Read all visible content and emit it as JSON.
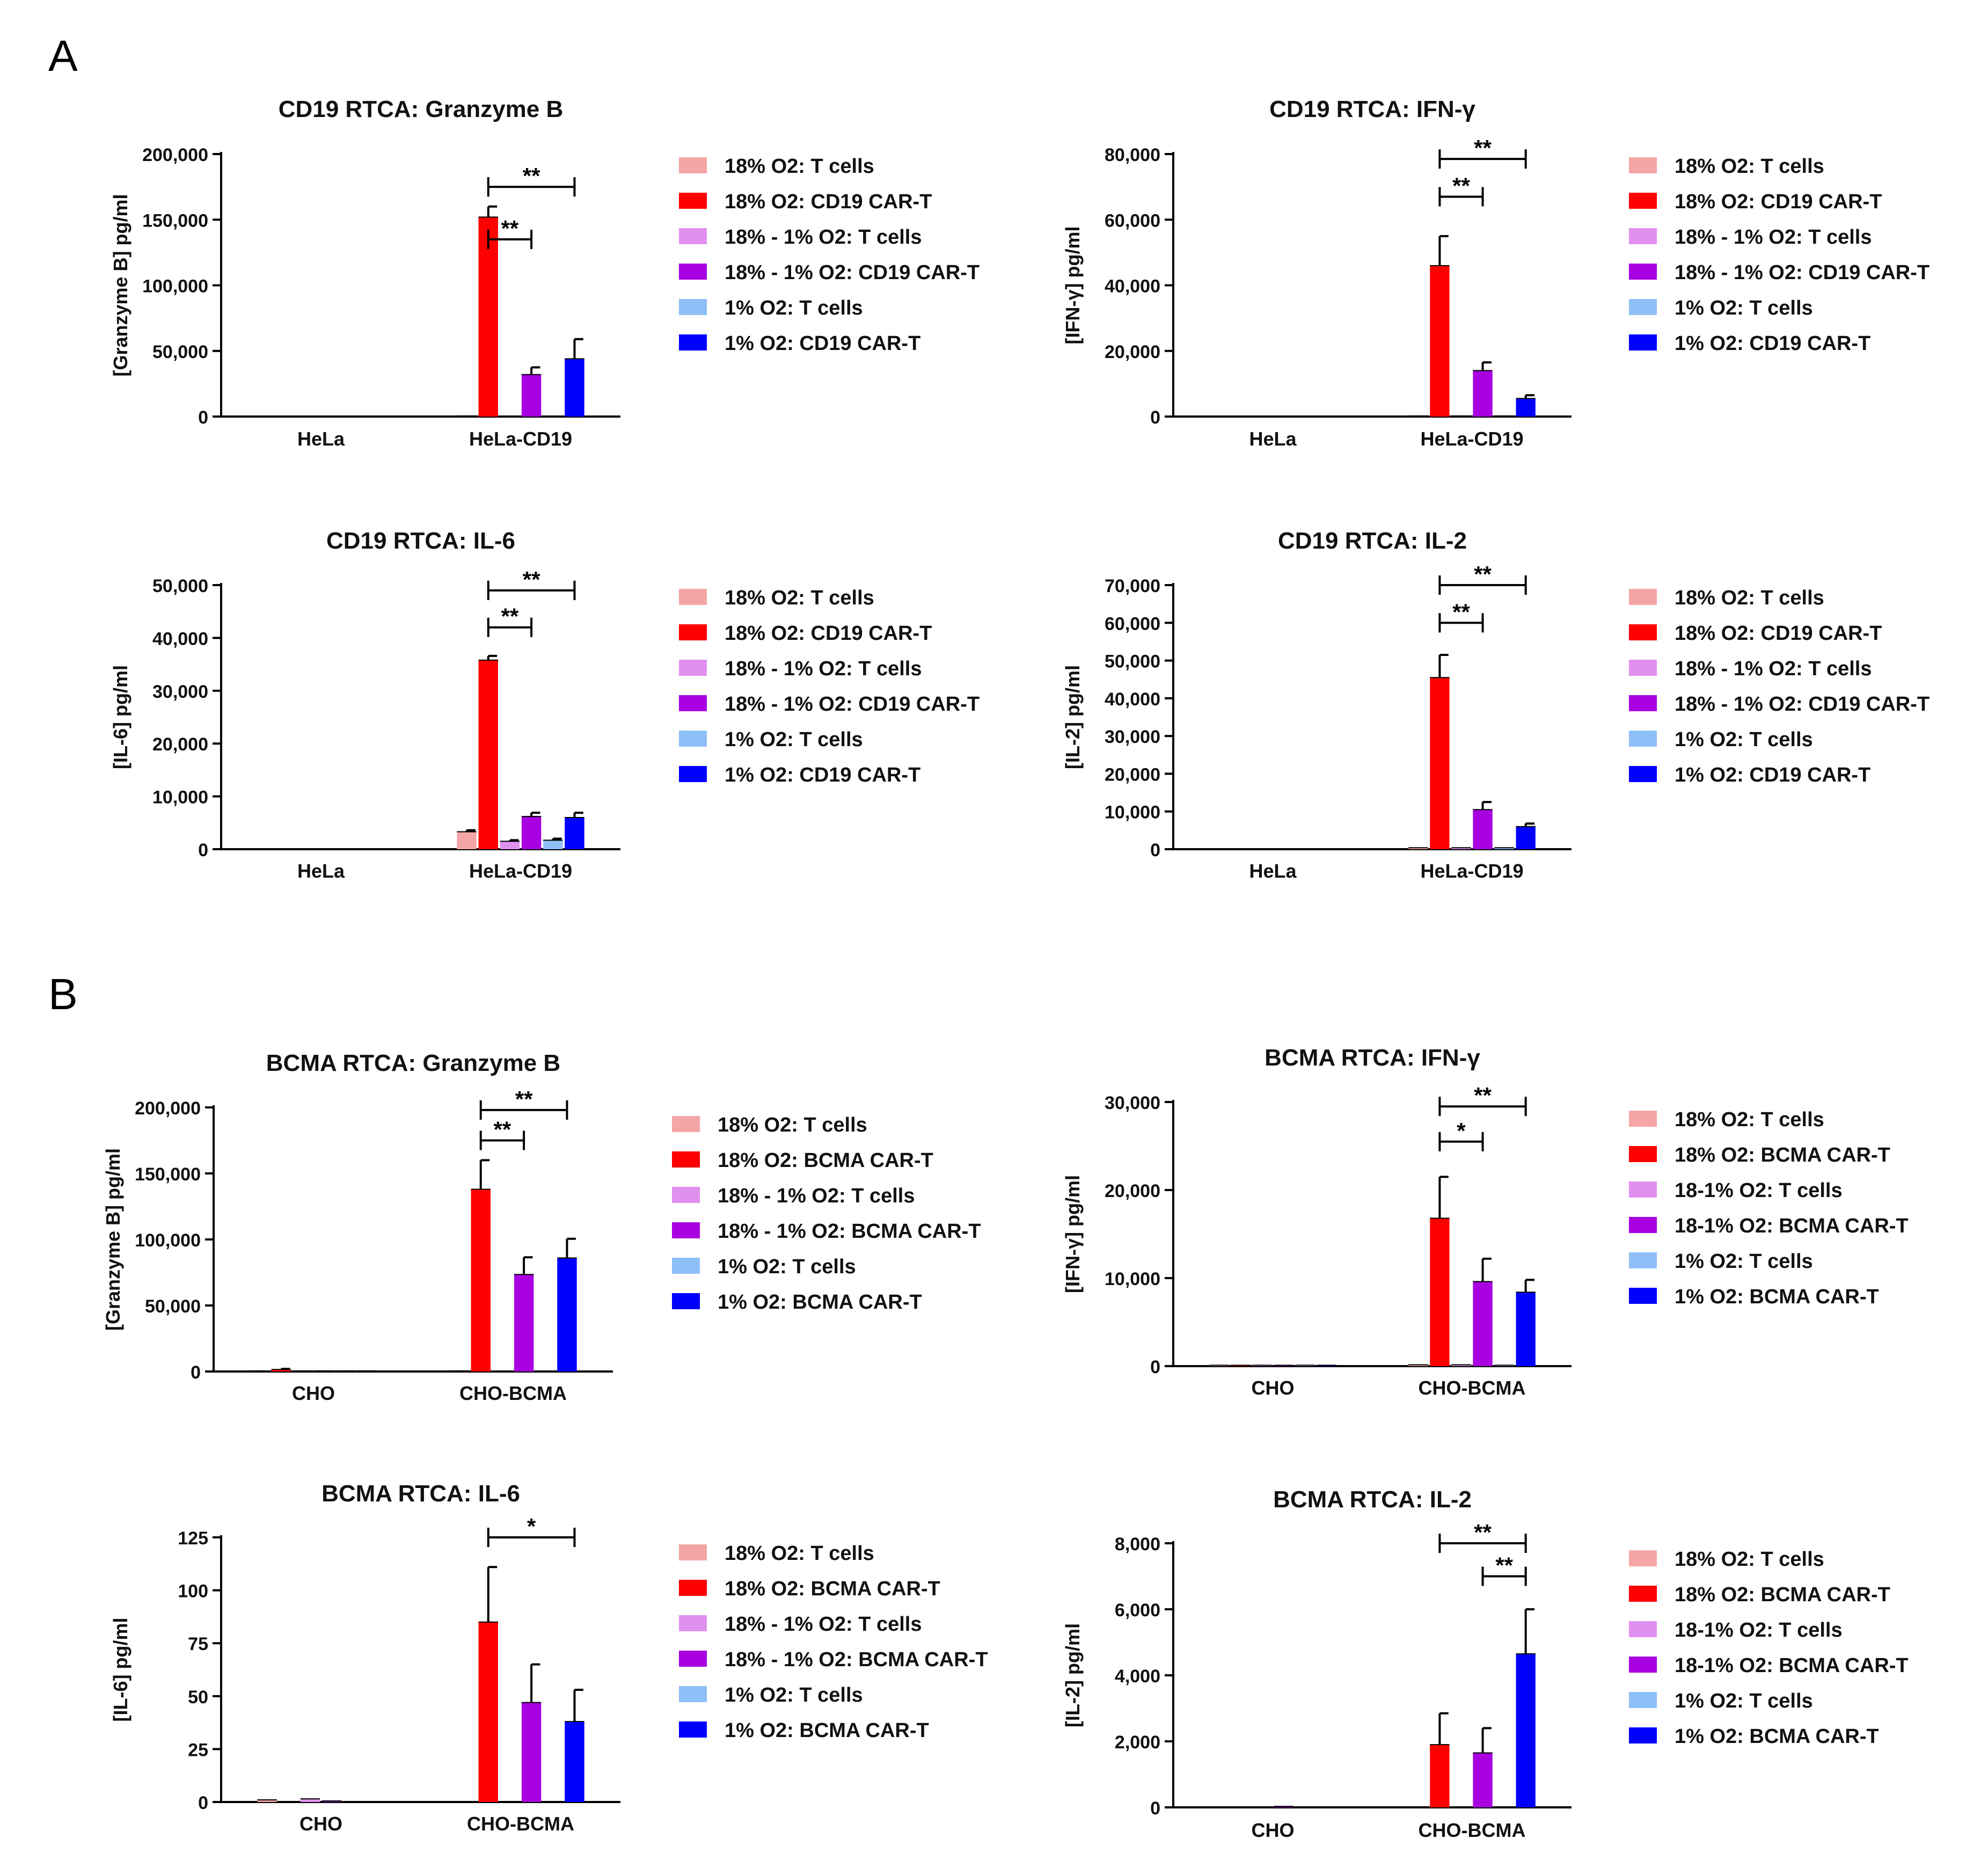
{
  "panels": [
    {
      "letter": "A"
    },
    {
      "letter": "B"
    }
  ],
  "chart_data": [
    {
      "type": "bar",
      "title": "CD19 RTCA: Granzyme B",
      "ylabel": "[Granzyme B] pg/ml",
      "ylim": [
        0,
        200000
      ],
      "yticks": [
        0,
        50000,
        100000,
        150000,
        200000
      ],
      "ytick_labels": [
        "0",
        "50,000",
        "100,000",
        "150,000",
        "200,000"
      ],
      "categories": [
        "HeLa",
        "HeLa-CD19"
      ],
      "series": [
        {
          "name": "18% O2: T cells",
          "color": "#f4a6a6",
          "values": [
            0,
            500
          ],
          "errors": [
            0,
            0
          ]
        },
        {
          "name": "18% O2: CD19 CAR-T",
          "color": "#ff0000",
          "values": [
            0,
            152000
          ],
          "errors": [
            0,
            8000
          ]
        },
        {
          "name": "18% - 1% O2: T cells",
          "color": "#e091f0",
          "values": [
            0,
            300
          ],
          "errors": [
            0,
            0
          ]
        },
        {
          "name": "18% - 1% O2: CD19 CAR-T",
          "color": "#a800e0",
          "values": [
            0,
            32000
          ],
          "errors": [
            0,
            5500
          ]
        },
        {
          "name": "1% O2: T cells",
          "color": "#8fbff7",
          "values": [
            0,
            300
          ],
          "errors": [
            0,
            0
          ]
        },
        {
          "name": "1% O2: CD19 CAR-T",
          "color": "#0000ff",
          "values": [
            0,
            44000
          ],
          "errors": [
            0,
            15000
          ]
        }
      ],
      "significance": [
        {
          "group": 1,
          "from": 1,
          "to": 3,
          "label": "**",
          "y": 135000
        },
        {
          "group": 1,
          "from": 1,
          "to": 5,
          "label": "**",
          "y": 175000
        }
      ]
    },
    {
      "type": "bar",
      "title": "CD19 RTCA: IFN-γ",
      "ylabel": "[IFN-γ] pg/ml",
      "ylim": [
        0,
        80000
      ],
      "yticks": [
        0,
        20000,
        40000,
        60000,
        80000
      ],
      "ytick_labels": [
        "0",
        "20,000",
        "40,000",
        "60,000",
        "80,000"
      ],
      "categories": [
        "HeLa",
        "HeLa-CD19"
      ],
      "series": [
        {
          "name": "18% O2: T cells",
          "color": "#f4a6a6",
          "values": [
            0,
            200
          ],
          "errors": [
            0,
            0
          ]
        },
        {
          "name": "18% O2: CD19 CAR-T",
          "color": "#ff0000",
          "values": [
            0,
            46000
          ],
          "errors": [
            0,
            9000
          ]
        },
        {
          "name": "18% - 1% O2: T cells",
          "color": "#e091f0",
          "values": [
            0,
            200
          ],
          "errors": [
            0,
            0
          ]
        },
        {
          "name": "18% - 1% O2: CD19 CAR-T",
          "color": "#a800e0",
          "values": [
            0,
            14000
          ],
          "errors": [
            0,
            2500
          ]
        },
        {
          "name": "1% O2: T cells",
          "color": "#8fbff7",
          "values": [
            0,
            200
          ],
          "errors": [
            0,
            0
          ]
        },
        {
          "name": "1% O2: CD19 CAR-T",
          "color": "#0000ff",
          "values": [
            0,
            5500
          ],
          "errors": [
            0,
            1000
          ]
        }
      ],
      "significance": [
        {
          "group": 1,
          "from": 1,
          "to": 3,
          "label": "**",
          "y": 67000
        },
        {
          "group": 1,
          "from": 1,
          "to": 5,
          "label": "**",
          "y": 78500
        }
      ]
    },
    {
      "type": "bar",
      "title": "CD19 RTCA: IL-6",
      "ylabel": "[IL-6] pg/ml",
      "ylim": [
        0,
        50000
      ],
      "yticks": [
        0,
        10000,
        20000,
        30000,
        40000,
        50000
      ],
      "ytick_labels": [
        "0",
        "10,000",
        "20,000",
        "30,000",
        "40,000",
        "50,000"
      ],
      "categories": [
        "HeLa",
        "HeLa-CD19"
      ],
      "series": [
        {
          "name": "18% O2: T cells",
          "color": "#f4a6a6",
          "values": [
            0,
            3300
          ],
          "errors": [
            0,
            300
          ]
        },
        {
          "name": "18% O2: CD19 CAR-T",
          "color": "#ff0000",
          "values": [
            0,
            35800
          ],
          "errors": [
            0,
            800
          ]
        },
        {
          "name": "18% - 1% O2: T cells",
          "color": "#e091f0",
          "values": [
            0,
            1500
          ],
          "errors": [
            0,
            200
          ]
        },
        {
          "name": "18% - 1% O2: CD19 CAR-T",
          "color": "#a800e0",
          "values": [
            0,
            6200
          ],
          "errors": [
            0,
            700
          ]
        },
        {
          "name": "1% O2: T cells",
          "color": "#8fbff7",
          "values": [
            0,
            1700
          ],
          "errors": [
            0,
            300
          ]
        },
        {
          "name": "1% O2: CD19 CAR-T",
          "color": "#0000ff",
          "values": [
            0,
            6000
          ],
          "errors": [
            0,
            900
          ]
        }
      ],
      "significance": [
        {
          "group": 1,
          "from": 1,
          "to": 3,
          "label": "**",
          "y": 42000
        },
        {
          "group": 1,
          "from": 1,
          "to": 5,
          "label": "**",
          "y": 49000
        }
      ]
    },
    {
      "type": "bar",
      "title": "CD19 RTCA: IL-2",
      "ylabel": "[IL-2] pg/ml",
      "ylim": [
        0,
        70000
      ],
      "yticks": [
        0,
        10000,
        20000,
        30000,
        40000,
        50000,
        60000,
        70000
      ],
      "ytick_labels": [
        "0",
        "10,000",
        "20,000",
        "30,000",
        "40,000",
        "50,000",
        "60,000",
        "70,000"
      ],
      "categories": [
        "HeLa",
        "HeLa-CD19"
      ],
      "series": [
        {
          "name": "18% O2: T cells",
          "color": "#f4a6a6",
          "values": [
            0,
            400
          ],
          "errors": [
            0,
            0
          ]
        },
        {
          "name": "18% O2: CD19 CAR-T",
          "color": "#ff0000",
          "values": [
            0,
            45500
          ],
          "errors": [
            0,
            6000
          ]
        },
        {
          "name": "18% - 1% O2: T cells",
          "color": "#e091f0",
          "values": [
            0,
            400
          ],
          "errors": [
            0,
            0
          ]
        },
        {
          "name": "18% - 1% O2: CD19 CAR-T",
          "color": "#a800e0",
          "values": [
            0,
            10500
          ],
          "errors": [
            0,
            2000
          ]
        },
        {
          "name": "1% O2: T cells",
          "color": "#8fbff7",
          "values": [
            0,
            400
          ],
          "errors": [
            0,
            0
          ]
        },
        {
          "name": "1% O2: CD19 CAR-T",
          "color": "#0000ff",
          "values": [
            0,
            6000
          ],
          "errors": [
            0,
            800
          ]
        }
      ],
      "significance": [
        {
          "group": 1,
          "from": 1,
          "to": 3,
          "label": "**",
          "y": 60000
        },
        {
          "group": 1,
          "from": 1,
          "to": 5,
          "label": "**",
          "y": 70000
        }
      ]
    },
    {
      "type": "bar",
      "title": "BCMA RTCA: Granzyme B",
      "ylabel": "[Granzyme B] pg/ml",
      "ylim": [
        0,
        200000
      ],
      "yticks": [
        0,
        50000,
        100000,
        150000,
        200000
      ],
      "ytick_labels": [
        "0",
        "50,000",
        "100,000",
        "150,000",
        "200,000"
      ],
      "categories": [
        "CHO",
        "CHO-BCMA"
      ],
      "series": [
        {
          "name": "18% O2: T cells",
          "color": "#f4a6a6",
          "values": [
            500,
            500
          ],
          "errors": [
            0,
            0
          ]
        },
        {
          "name": "18% O2: BCMA CAR-T",
          "color": "#ff0000",
          "values": [
            1500,
            138000
          ],
          "errors": [
            500,
            22000
          ]
        },
        {
          "name": "18% - 1% O2: T cells",
          "color": "#e091f0",
          "values": [
            500,
            300
          ],
          "errors": [
            0,
            0
          ]
        },
        {
          "name": "18% - 1% O2: BCMA CAR-T",
          "color": "#a800e0",
          "values": [
            500,
            73500
          ],
          "errors": [
            0,
            13000
          ]
        },
        {
          "name": "1% O2: T cells",
          "color": "#8fbff7",
          "values": [
            500,
            300
          ],
          "errors": [
            0,
            0
          ]
        },
        {
          "name": "1% O2: BCMA CAR-T",
          "color": "#0000ff",
          "values": [
            500,
            86000
          ],
          "errors": [
            0,
            14500
          ]
        }
      ],
      "significance": [
        {
          "group": 1,
          "from": 1,
          "to": 3,
          "label": "**",
          "y": 175000
        },
        {
          "group": 1,
          "from": 1,
          "to": 5,
          "label": "**",
          "y": 198000
        }
      ]
    },
    {
      "type": "bar",
      "title": "BCMA RTCA: IFN-γ",
      "ylabel": "[IFN-γ] pg/ml",
      "ylim": [
        0,
        30000
      ],
      "yticks": [
        0,
        10000,
        20000,
        30000
      ],
      "ytick_labels": [
        "0",
        "10,000",
        "20,000",
        "30,000"
      ],
      "categories": [
        "CHO",
        "CHO-BCMA"
      ],
      "series": [
        {
          "name": "18% O2: T cells",
          "color": "#f4a6a6",
          "values": [
            100,
            150
          ],
          "errors": [
            0,
            0
          ]
        },
        {
          "name": "18% O2: BCMA CAR-T",
          "color": "#ff0000",
          "values": [
            100,
            16800
          ],
          "errors": [
            0,
            4700
          ]
        },
        {
          "name": "18-1% O2: T cells",
          "color": "#e091f0",
          "values": [
            100,
            150
          ],
          "errors": [
            0,
            0
          ]
        },
        {
          "name": "18-1% O2: BCMA CAR-T",
          "color": "#a800e0",
          "values": [
            100,
            9600
          ],
          "errors": [
            0,
            2600
          ]
        },
        {
          "name": "1% O2: T cells",
          "color": "#8fbff7",
          "values": [
            100,
            100
          ],
          "errors": [
            0,
            0
          ]
        },
        {
          "name": "1% O2: BCMA CAR-T",
          "color": "#0000ff",
          "values": [
            100,
            8400
          ],
          "errors": [
            0,
            1400
          ]
        }
      ],
      "significance": [
        {
          "group": 1,
          "from": 1,
          "to": 3,
          "label": "*",
          "y": 25500
        },
        {
          "group": 1,
          "from": 1,
          "to": 5,
          "label": "**",
          "y": 29500
        }
      ]
    },
    {
      "type": "bar",
      "title": "BCMA RTCA: IL-6",
      "ylabel": "[IL-6] pg/ml",
      "ylim": [
        0,
        125
      ],
      "yticks": [
        0,
        25,
        50,
        75,
        100,
        125
      ],
      "ytick_labels": [
        "0",
        "25",
        "50",
        "75",
        "100",
        "125"
      ],
      "categories": [
        "CHO",
        "CHO-BCMA"
      ],
      "series": [
        {
          "name": "18% O2: T cells",
          "color": "#f4a6a6",
          "values": [
            1,
            0
          ],
          "errors": [
            0,
            0
          ]
        },
        {
          "name": "18% O2: BCMA CAR-T",
          "color": "#ff0000",
          "values": [
            0,
            85
          ],
          "errors": [
            0,
            26
          ]
        },
        {
          "name": "18% - 1% O2: T cells",
          "color": "#e091f0",
          "values": [
            1.5,
            0
          ],
          "errors": [
            0,
            0
          ]
        },
        {
          "name": "18% - 1% O2: BCMA CAR-T",
          "color": "#a800e0",
          "values": [
            0.5,
            47
          ],
          "errors": [
            0,
            18
          ]
        },
        {
          "name": "1% O2: T cells",
          "color": "#8fbff7",
          "values": [
            0,
            0
          ],
          "errors": [
            0,
            0
          ]
        },
        {
          "name": "1% O2: BCMA CAR-T",
          "color": "#0000ff",
          "values": [
            0,
            38
          ],
          "errors": [
            0,
            15
          ]
        }
      ],
      "significance": [
        {
          "group": 1,
          "from": 1,
          "to": 5,
          "label": "*",
          "y": 125
        }
      ]
    },
    {
      "type": "bar",
      "title": "BCMA RTCA: IL-2",
      "ylabel": "[IL-2] pg/ml",
      "ylim": [
        0,
        8000
      ],
      "yticks": [
        0,
        2000,
        4000,
        6000,
        8000
      ],
      "ytick_labels": [
        "0",
        "2,000",
        "4,000",
        "6,000",
        "8,000"
      ],
      "categories": [
        "CHO",
        "CHO-BCMA"
      ],
      "series": [
        {
          "name": "18% O2: T cells",
          "color": "#f4a6a6",
          "values": [
            0,
            0
          ],
          "errors": [
            0,
            0
          ]
        },
        {
          "name": "18% O2: BCMA CAR-T",
          "color": "#ff0000",
          "values": [
            0,
            1900
          ],
          "errors": [
            0,
            950
          ]
        },
        {
          "name": "18-1% O2: T cells",
          "color": "#e091f0",
          "values": [
            0,
            0
          ],
          "errors": [
            0,
            0
          ]
        },
        {
          "name": "18-1% O2: BCMA CAR-T",
          "color": "#a800e0",
          "values": [
            30,
            1650
          ],
          "errors": [
            0,
            750
          ]
        },
        {
          "name": "1% O2: T cells",
          "color": "#8fbff7",
          "values": [
            0,
            0
          ],
          "errors": [
            0,
            0
          ]
        },
        {
          "name": "1% O2: BCMA CAR-T",
          "color": "#0000ff",
          "values": [
            0,
            4650
          ],
          "errors": [
            0,
            1350
          ]
        }
      ],
      "significance": [
        {
          "group": 1,
          "from": 1,
          "to": 5,
          "label": "**",
          "y": 8000
        },
        {
          "group": 1,
          "from": 3,
          "to": 5,
          "label": "**",
          "y": 7000
        }
      ]
    }
  ]
}
